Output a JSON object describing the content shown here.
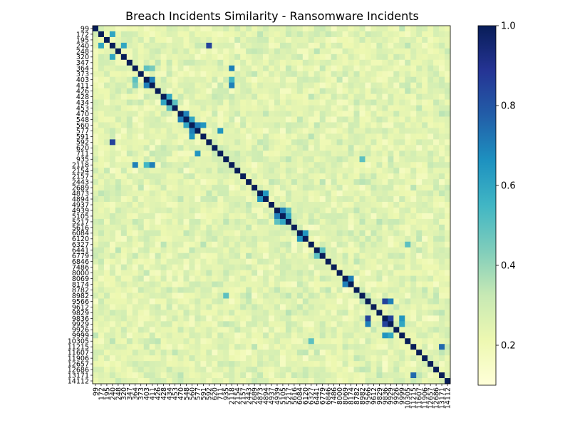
{
  "chart_data": {
    "type": "heatmap",
    "title": "Breach Incidents Similarity - Ransomware Incidents",
    "labels": [
      "99",
      "172",
      "195",
      "240",
      "248",
      "320",
      "347",
      "364",
      "373",
      "403",
      "411",
      "426",
      "428",
      "434",
      "453",
      "470",
      "548",
      "560",
      "577",
      "591",
      "592",
      "620",
      "711",
      "935",
      "2118",
      "2154",
      "2157",
      "2443",
      "2689",
      "4873",
      "4894",
      "4937",
      "4939",
      "5105",
      "5217",
      "5616",
      "6084",
      "6120",
      "6327",
      "6441",
      "6779",
      "6846",
      "7486",
      "8000",
      "8069",
      "8174",
      "8782",
      "8982",
      "9566",
      "9612",
      "9829",
      "9836",
      "9929",
      "9926",
      "9999",
      "10305",
      "11215",
      "11607",
      "11906",
      "12657",
      "12686",
      "13171",
      "14112"
    ],
    "colorbar": {
      "min": 0.1,
      "max": 1.0,
      "ticks": [
        0.2,
        0.4,
        0.6,
        0.8,
        1.0
      ],
      "colormap": "YlGnBu"
    },
    "value_range": [
      0.1,
      1.0
    ],
    "diagonal_value": 1.0,
    "background_similarity_estimate": 0.25,
    "notable_pairs": [
      {
        "a": "172",
        "b": "240",
        "value": 0.6
      },
      {
        "a": "240",
        "b": "320",
        "value": 0.6
      },
      {
        "a": "240",
        "b": "592",
        "value": 0.85
      },
      {
        "a": "364",
        "b": "403",
        "value": 0.5
      },
      {
        "a": "364",
        "b": "2118",
        "value": 0.7
      },
      {
        "a": "364",
        "b": "411",
        "value": 0.45
      },
      {
        "a": "403",
        "b": "411",
        "value": 0.7
      },
      {
        "a": "403",
        "b": "2118",
        "value": 0.55
      },
      {
        "a": "411",
        "b": "2118",
        "value": 0.7
      },
      {
        "a": "428",
        "b": "434",
        "value": 0.6
      },
      {
        "a": "434",
        "b": "453",
        "value": 0.5
      },
      {
        "a": "470",
        "b": "548",
        "value": 0.7
      },
      {
        "a": "548",
        "b": "560",
        "value": 0.6
      },
      {
        "a": "560",
        "b": "577",
        "value": 0.7
      },
      {
        "a": "560",
        "b": "591",
        "value": 0.65
      },
      {
        "a": "577",
        "b": "711",
        "value": 0.65
      },
      {
        "a": "935",
        "b": "8982",
        "value": 0.5
      },
      {
        "a": "4873",
        "b": "4894",
        "value": 0.65
      },
      {
        "a": "4939",
        "b": "5105",
        "value": 0.7
      },
      {
        "a": "4939",
        "b": "5217",
        "value": 0.5
      },
      {
        "a": "5105",
        "b": "5217",
        "value": 0.6
      },
      {
        "a": "6084",
        "b": "6120",
        "value": 0.65
      },
      {
        "a": "6441",
        "b": "6779",
        "value": 0.5
      },
      {
        "a": "8069",
        "b": "8174",
        "value": 0.7
      },
      {
        "a": "9566",
        "b": "9836",
        "value": 0.85
      },
      {
        "a": "9566",
        "b": "9929",
        "value": 0.7
      },
      {
        "a": "9836",
        "b": "9929",
        "value": 0.85
      },
      {
        "a": "9836",
        "b": "9999",
        "value": 0.65
      },
      {
        "a": "9929",
        "b": "9999",
        "value": 0.6
      },
      {
        "a": "11215",
        "b": "13171",
        "value": 0.75
      },
      {
        "a": "6327",
        "b": "10305",
        "value": 0.5
      }
    ]
  }
}
